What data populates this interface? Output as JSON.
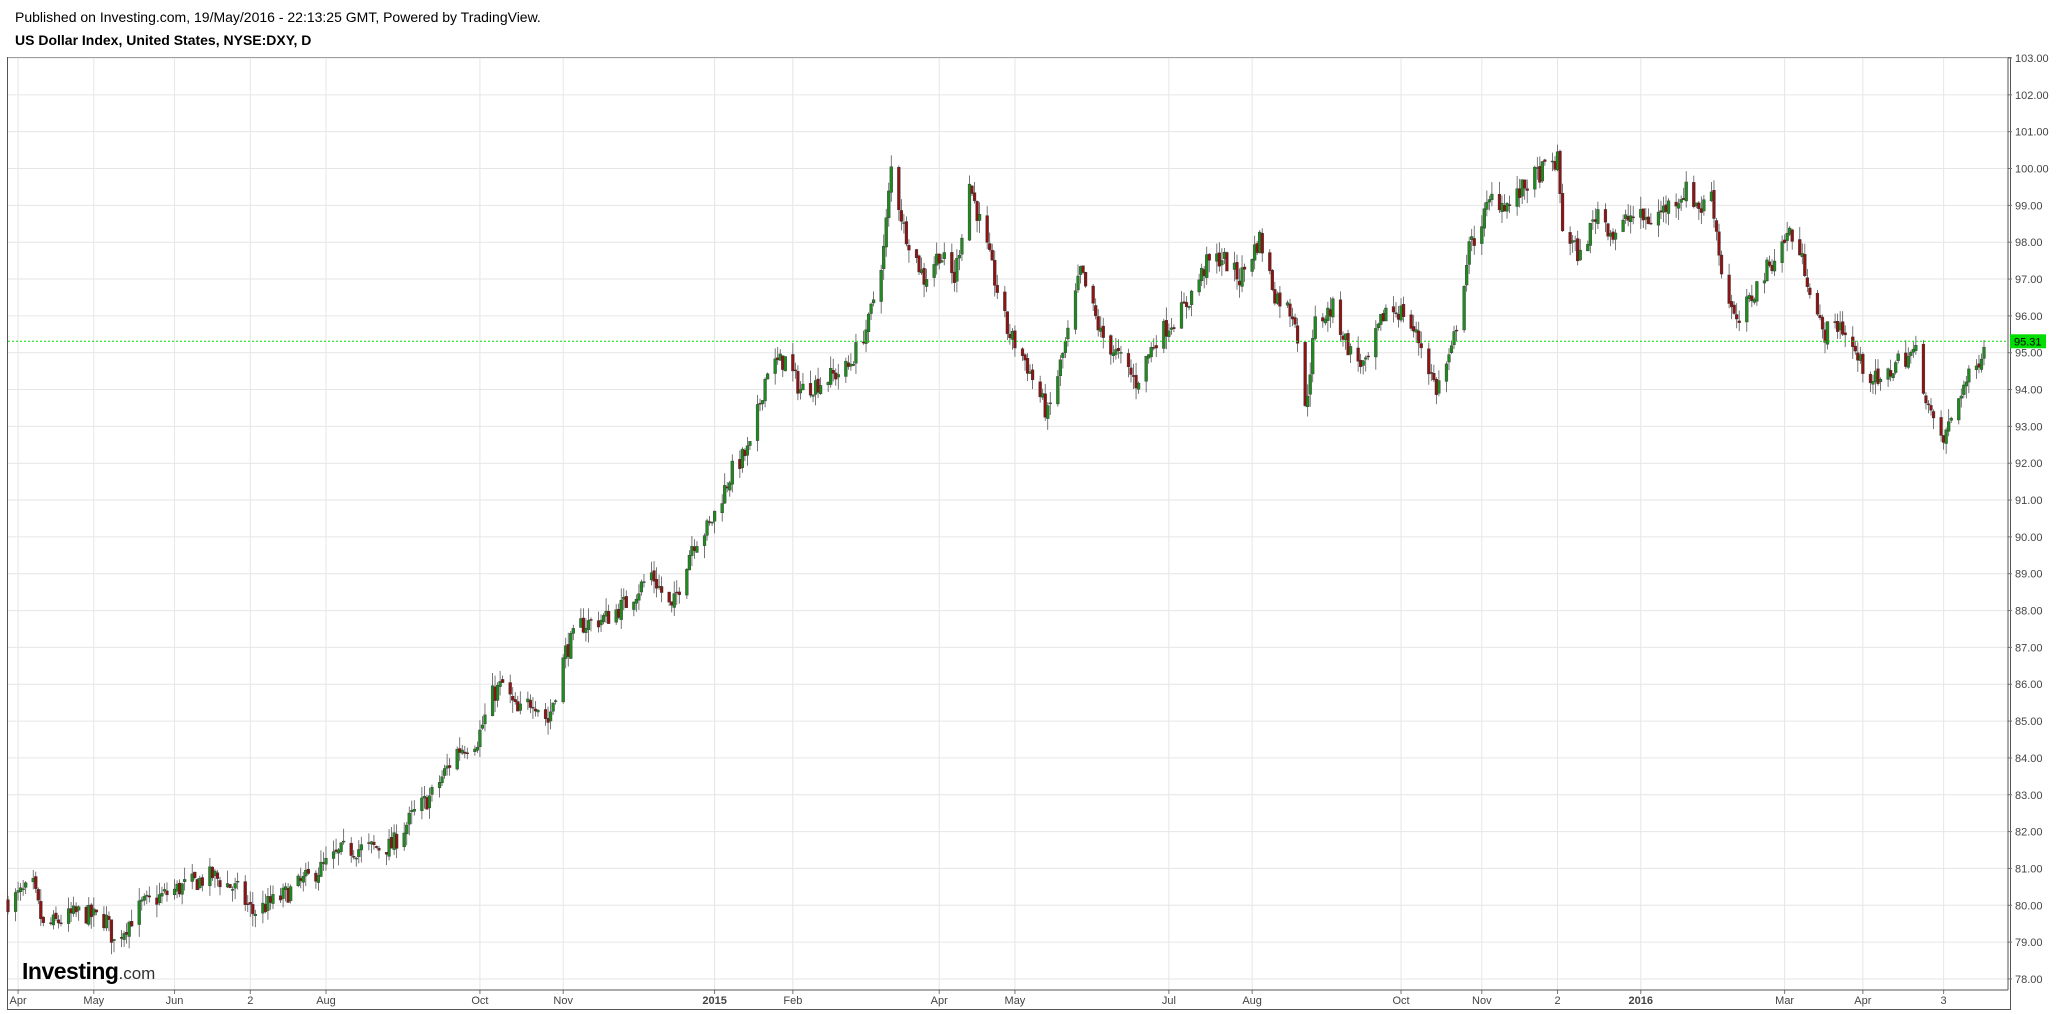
{
  "header": {
    "published": "Published on Investing.com, 19/May/2016 - 22:13:25 GMT, Powered by TradingView.",
    "instrument": "US Dollar Index, United States, NYSE:DXY, D"
  },
  "logo": {
    "main": "Investing",
    "suffix": ".com"
  },
  "colors": {
    "up": "#1f8a1f",
    "down": "#8b1414",
    "grid": "#e6e6e6",
    "last_price": "#00dd00",
    "axis_text": "#444444"
  },
  "chart_data": {
    "type": "candlestick",
    "title": "US Dollar Index, United States, NYSE:DXY, D",
    "timeframe": "D",
    "ylim": [
      77.7,
      103.0
    ],
    "y_ticks": [
      "78.00",
      "79.00",
      "80.00",
      "81.00",
      "82.00",
      "83.00",
      "84.00",
      "85.00",
      "86.00",
      "87.00",
      "88.00",
      "89.00",
      "90.00",
      "91.00",
      "92.00",
      "93.00",
      "94.00",
      "95.00",
      "96.00",
      "97.00",
      "98.00",
      "99.00",
      "100.00",
      "101.00",
      "102.00",
      "103.00"
    ],
    "x_ticks": [
      {
        "label": "Apr",
        "date": "2014-04-01",
        "bold": false
      },
      {
        "label": "May",
        "date": "2014-05-01",
        "bold": false
      },
      {
        "label": "Jun",
        "date": "2014-06-02",
        "bold": false
      },
      {
        "label": "2",
        "date": "2014-07-02",
        "bold": false
      },
      {
        "label": "Aug",
        "date": "2014-08-01",
        "bold": false
      },
      {
        "label": "Oct",
        "date": "2014-10-01",
        "bold": false
      },
      {
        "label": "Nov",
        "date": "2014-11-03",
        "bold": false
      },
      {
        "label": "2015",
        "date": "2015-01-02",
        "bold": true
      },
      {
        "label": "Feb",
        "date": "2015-02-02",
        "bold": false
      },
      {
        "label": "Apr",
        "date": "2015-04-01",
        "bold": false
      },
      {
        "label": "May",
        "date": "2015-05-01",
        "bold": false
      },
      {
        "label": "Jul",
        "date": "2015-07-01",
        "bold": false
      },
      {
        "label": "Aug",
        "date": "2015-08-03",
        "bold": false
      },
      {
        "label": "Oct",
        "date": "2015-10-01",
        "bold": false
      },
      {
        "label": "Nov",
        "date": "2015-11-02",
        "bold": false
      },
      {
        "label": "2",
        "date": "2015-12-02",
        "bold": false
      },
      {
        "label": "2016",
        "date": "2016-01-04",
        "bold": true
      },
      {
        "label": "Mar",
        "date": "2016-03-01",
        "bold": false
      },
      {
        "label": "Apr",
        "date": "2016-04-01",
        "bold": false
      },
      {
        "label": "3",
        "date": "2016-05-03",
        "bold": false
      }
    ],
    "last_price": "95.31",
    "start_date": "2014-03-28",
    "end_date": "2016-05-19",
    "series_close": [
      [
        "2014-03-28",
        80.1
      ],
      [
        "2014-04-07",
        80.5
      ],
      [
        "2014-04-11",
        79.4
      ],
      [
        "2014-04-25",
        79.8
      ],
      [
        "2014-05-06",
        79.6
      ],
      [
        "2014-05-09",
        79.0
      ],
      [
        "2014-05-20",
        80.0
      ],
      [
        "2014-06-05",
        80.5
      ],
      [
        "2014-06-17",
        80.8
      ],
      [
        "2014-06-27",
        80.4
      ],
      [
        "2014-07-03",
        79.8
      ],
      [
        "2014-07-14",
        80.2
      ],
      [
        "2014-07-30",
        81.0
      ],
      [
        "2014-08-08",
        81.5
      ],
      [
        "2014-08-27",
        81.6
      ],
      [
        "2014-09-05",
        82.5
      ],
      [
        "2014-09-12",
        83.0
      ],
      [
        "2014-09-22",
        84.2
      ],
      [
        "2014-09-30",
        84.5
      ],
      [
        "2014-10-06",
        85.7
      ],
      [
        "2014-10-10",
        86.0
      ],
      [
        "2014-10-16",
        85.2
      ],
      [
        "2014-10-22",
        85.6
      ],
      [
        "2014-10-28",
        85.0
      ],
      [
        "2014-11-04",
        86.9
      ],
      [
        "2014-11-10",
        87.6
      ],
      [
        "2014-11-20",
        87.8
      ],
      [
        "2014-11-28",
        88.2
      ],
      [
        "2014-12-08",
        89.0
      ],
      [
        "2014-12-16",
        88.0
      ],
      [
        "2014-12-24",
        89.8
      ],
      [
        "2014-12-31",
        90.3
      ],
      [
        "2015-01-09",
        91.8
      ],
      [
        "2015-01-16",
        92.4
      ],
      [
        "2015-01-23",
        94.6
      ],
      [
        "2015-01-30",
        94.8
      ],
      [
        "2015-02-05",
        94.0
      ],
      [
        "2015-02-13",
        94.2
      ],
      [
        "2015-02-24",
        94.6
      ],
      [
        "2015-03-04",
        95.8
      ],
      [
        "2015-03-10",
        97.8
      ],
      [
        "2015-03-13",
        100.0
      ],
      [
        "2015-03-18",
        98.4
      ],
      [
        "2015-03-26",
        97.0
      ],
      [
        "2015-04-01",
        97.7
      ],
      [
        "2015-04-07",
        97.0
      ],
      [
        "2015-04-13",
        99.6
      ],
      [
        "2015-04-20",
        97.8
      ],
      [
        "2015-04-28",
        95.6
      ],
      [
        "2015-05-05",
        94.8
      ],
      [
        "2015-05-14",
        93.3
      ],
      [
        "2015-05-22",
        95.5
      ],
      [
        "2015-05-27",
        97.2
      ],
      [
        "2015-06-04",
        95.5
      ],
      [
        "2015-06-12",
        94.8
      ],
      [
        "2015-06-18",
        94.2
      ],
      [
        "2015-06-26",
        95.4
      ],
      [
        "2015-07-07",
        96.2
      ],
      [
        "2015-07-16",
        97.4
      ],
      [
        "2015-07-22",
        97.6
      ],
      [
        "2015-07-29",
        97.0
      ],
      [
        "2015-08-06",
        98.1
      ],
      [
        "2015-08-12",
        96.6
      ],
      [
        "2015-08-20",
        96.0
      ],
      [
        "2015-08-24",
        93.4
      ],
      [
        "2015-08-28",
        95.8
      ],
      [
        "2015-09-04",
        96.2
      ],
      [
        "2015-09-11",
        95.0
      ],
      [
        "2015-09-17",
        94.6
      ],
      [
        "2015-09-25",
        96.2
      ],
      [
        "2015-10-02",
        96.1
      ],
      [
        "2015-10-09",
        95.2
      ],
      [
        "2015-10-15",
        94.0
      ],
      [
        "2015-10-21",
        95.0
      ],
      [
        "2015-10-28",
        97.8
      ],
      [
        "2015-11-06",
        99.2
      ],
      [
        "2015-11-13",
        99.0
      ],
      [
        "2015-11-20",
        99.6
      ],
      [
        "2015-11-27",
        100.0
      ],
      [
        "2015-12-02",
        100.2
      ],
      [
        "2015-12-04",
        98.4
      ],
      [
        "2015-12-11",
        97.6
      ],
      [
        "2015-12-18",
        98.9
      ],
      [
        "2015-12-24",
        98.2
      ],
      [
        "2015-12-31",
        98.7
      ],
      [
        "2016-01-08",
        98.6
      ],
      [
        "2016-01-15",
        99.0
      ],
      [
        "2016-01-22",
        99.4
      ],
      [
        "2016-01-28",
        98.9
      ],
      [
        "2016-02-01",
        99.4
      ],
      [
        "2016-02-05",
        97.2
      ],
      [
        "2016-02-11",
        95.7
      ],
      [
        "2016-02-19",
        96.8
      ],
      [
        "2016-02-26",
        97.6
      ],
      [
        "2016-03-03",
        98.3
      ],
      [
        "2016-03-09",
        97.3
      ],
      [
        "2016-03-16",
        95.5
      ],
      [
        "2016-03-23",
        95.8
      ],
      [
        "2016-03-31",
        94.7
      ],
      [
        "2016-04-08",
        94.1
      ],
      [
        "2016-04-15",
        94.8
      ],
      [
        "2016-04-22",
        95.0
      ],
      [
        "2016-04-29",
        93.0
      ],
      [
        "2016-05-03",
        92.6
      ],
      [
        "2016-05-10",
        94.0
      ],
      [
        "2016-05-16",
        94.6
      ],
      [
        "2016-05-19",
        95.3
      ]
    ]
  }
}
